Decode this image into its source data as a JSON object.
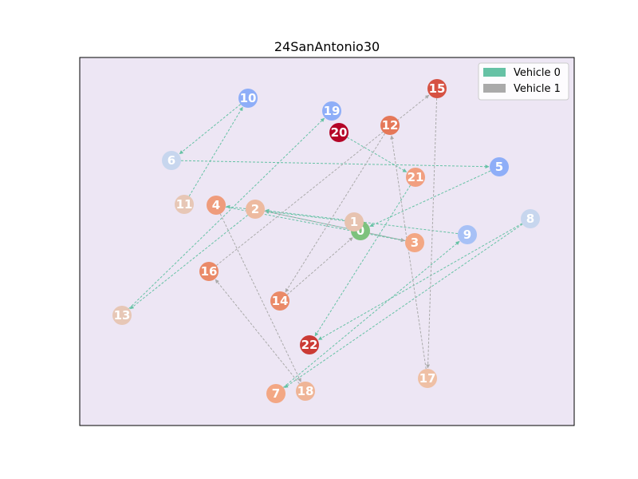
{
  "figure": {
    "title": "24SanAntonio30"
  },
  "legend": {
    "placement": "top-right",
    "items": [
      {
        "label": "Vehicle 0",
        "color": "#66c2a5"
      },
      {
        "label": "Vehicle 1",
        "color": "#aaaaaa"
      }
    ]
  },
  "colors": {
    "plot_background": "#ede6f4",
    "depot": "#7dc27d",
    "vehicle_0": "#66c2a5",
    "vehicle_1": "#aaaaaa"
  },
  "nodes": [
    {
      "id": "0",
      "color": "#7dc27d",
      "depot": true
    },
    {
      "id": "1",
      "color": "#e7c3b0"
    },
    {
      "id": "2",
      "color": "#edbaa0"
    },
    {
      "id": "3",
      "color": "#f3a784"
    },
    {
      "id": "4",
      "color": "#ef9c7c"
    },
    {
      "id": "5",
      "color": "#8eaef8"
    },
    {
      "id": "6",
      "color": "#c7d6ee"
    },
    {
      "id": "7",
      "color": "#f3a784"
    },
    {
      "id": "8",
      "color": "#c7d6ee"
    },
    {
      "id": "9",
      "color": "#a7c1f6"
    },
    {
      "id": "10",
      "color": "#8eaef8"
    },
    {
      "id": "11",
      "color": "#e7c7b6"
    },
    {
      "id": "12",
      "color": "#e57859"
    },
    {
      "id": "13",
      "color": "#e7c7b6"
    },
    {
      "id": "14",
      "color": "#ea8a68"
    },
    {
      "id": "15",
      "color": "#d65243"
    },
    {
      "id": "16",
      "color": "#ea8a68"
    },
    {
      "id": "17",
      "color": "#efc0a5"
    },
    {
      "id": "18",
      "color": "#efb597"
    },
    {
      "id": "19",
      "color": "#8eaef8"
    },
    {
      "id": "20",
      "color": "#b40427"
    },
    {
      "id": "21",
      "color": "#f19f80"
    },
    {
      "id": "22",
      "color": "#cb3a35"
    }
  ],
  "edges": [
    {
      "from": "0",
      "to": "1",
      "vehicle": 0
    },
    {
      "from": "1",
      "to": "4",
      "vehicle": 0
    },
    {
      "from": "4",
      "to": "3",
      "vehicle": 0
    },
    {
      "from": "3",
      "to": "2",
      "vehicle": 0
    },
    {
      "from": "9",
      "to": "2",
      "vehicle": 0
    },
    {
      "from": "5",
      "to": "0",
      "vehicle": 0
    },
    {
      "from": "6",
      "to": "5",
      "vehicle": 0
    },
    {
      "from": "10",
      "to": "6",
      "vehicle": 0
    },
    {
      "from": "11",
      "to": "10",
      "vehicle": 0
    },
    {
      "from": "8",
      "to": "7",
      "vehicle": 0
    },
    {
      "from": "7",
      "to": "9",
      "vehicle": 0
    },
    {
      "from": "8",
      "to": "22",
      "vehicle": 0
    },
    {
      "from": "21",
      "to": "22",
      "vehicle": 0
    },
    {
      "from": "20",
      "to": "21",
      "vehicle": 0
    },
    {
      "from": "13",
      "to": "19",
      "vehicle": 0
    },
    {
      "from": "2",
      "to": "13",
      "vehicle": 0
    },
    {
      "from": "2",
      "to": "3",
      "vehicle": 1
    },
    {
      "from": "14",
      "to": "0",
      "vehicle": 1
    },
    {
      "from": "12",
      "to": "14",
      "vehicle": 1
    },
    {
      "from": "16",
      "to": "15",
      "vehicle": 1
    },
    {
      "from": "15",
      "to": "17",
      "vehicle": 1
    },
    {
      "from": "17",
      "to": "12",
      "vehicle": 1
    },
    {
      "from": "18",
      "to": "16",
      "vehicle": 1
    },
    {
      "from": "4",
      "to": "18",
      "vehicle": 1
    }
  ]
}
